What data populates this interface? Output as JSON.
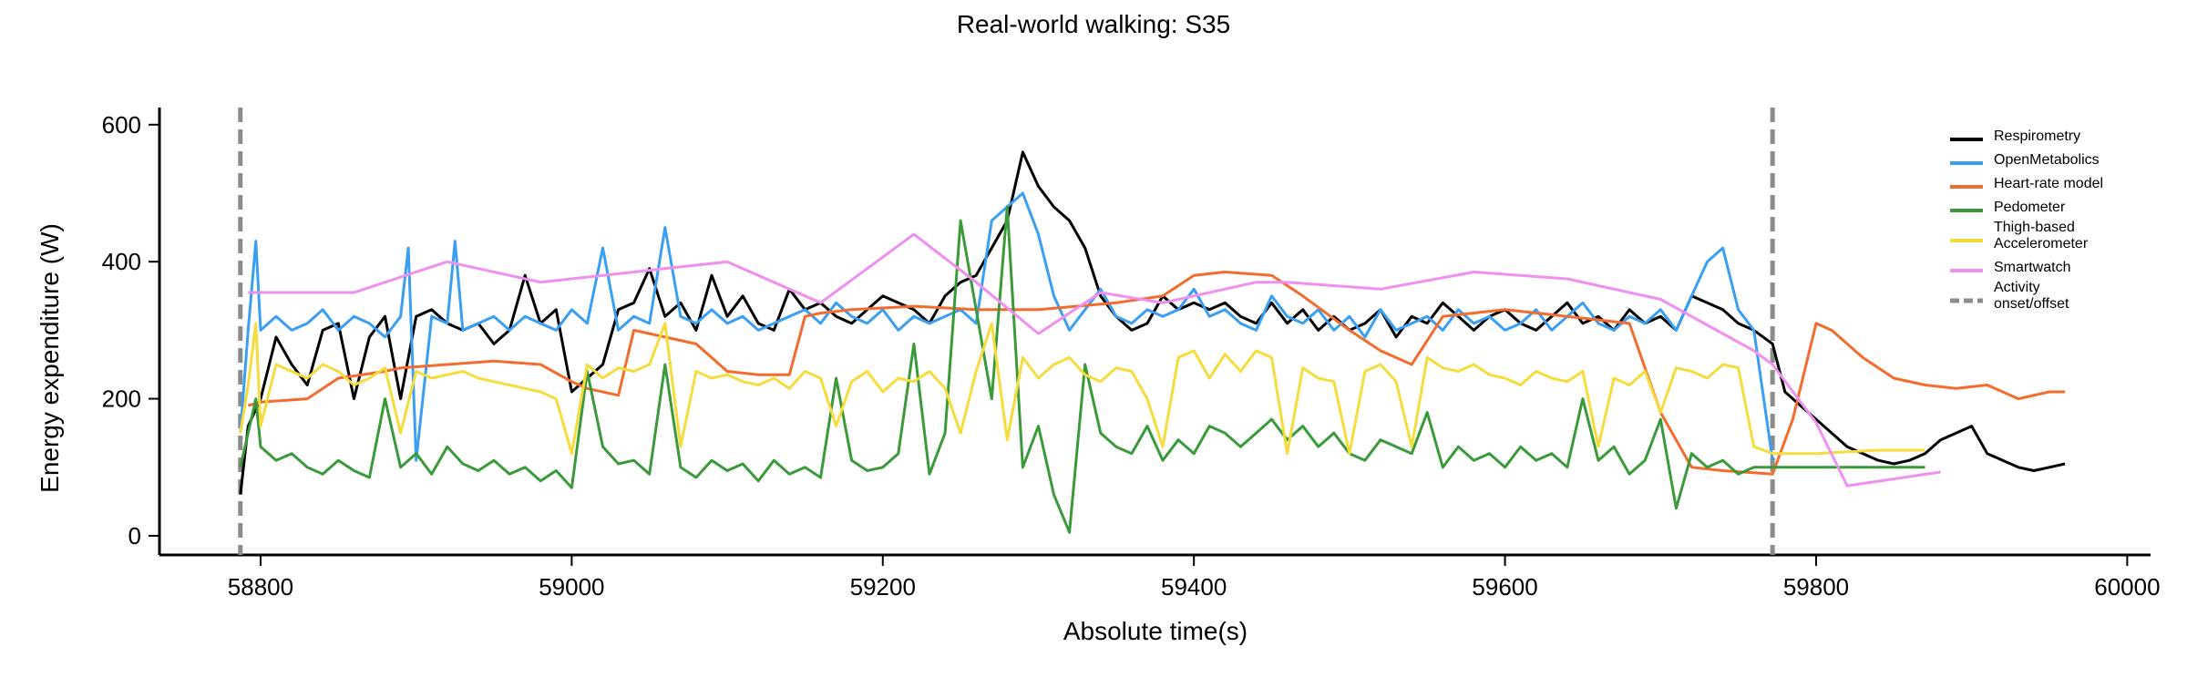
{
  "chart_data": {
    "type": "line",
    "title": "Real-world walking: S35",
    "xlabel": "Absolute time(s)",
    "ylabel": "Energy expenditure (W)",
    "xlim": [
      58735,
      60015
    ],
    "ylim": [
      -28,
      625
    ],
    "xticks": [
      58800,
      59000,
      59200,
      59400,
      59600,
      59800,
      60000
    ],
    "yticks": [
      0,
      200,
      400,
      600
    ],
    "grid": false,
    "legend_position": "top-right",
    "vlines": {
      "name": "Activity\nonset/offset",
      "x": [
        58787,
        59772
      ],
      "color": "#8c8c8c",
      "style": "dashed"
    },
    "series": [
      {
        "name": "Respirometry",
        "color": "#000000",
        "x": [
          58787,
          58792,
          58800,
          58810,
          58820,
          58830,
          58840,
          58850,
          58860,
          58870,
          58880,
          58890,
          58900,
          58910,
          58920,
          58930,
          58940,
          58950,
          58960,
          58970,
          58980,
          58990,
          59000,
          59010,
          59020,
          59030,
          59040,
          59050,
          59060,
          59070,
          59080,
          59090,
          59100,
          59110,
          59120,
          59130,
          59140,
          59150,
          59160,
          59170,
          59180,
          59190,
          59200,
          59210,
          59220,
          59230,
          59240,
          59250,
          59260,
          59270,
          59280,
          59290,
          59300,
          59310,
          59320,
          59330,
          59340,
          59350,
          59360,
          59370,
          59380,
          59390,
          59400,
          59410,
          59420,
          59430,
          59440,
          59450,
          59460,
          59470,
          59480,
          59490,
          59500,
          59510,
          59520,
          59530,
          59540,
          59550,
          59560,
          59570,
          59580,
          59590,
          59600,
          59610,
          59620,
          59630,
          59640,
          59650,
          59660,
          59670,
          59680,
          59690,
          59700,
          59710,
          59720,
          59730,
          59740,
          59750,
          59760,
          59772,
          59780,
          59790,
          59800,
          59810,
          59820,
          59830,
          59840,
          59850,
          59860,
          59870,
          59880,
          59890,
          59900,
          59910,
          59920,
          59930,
          59940,
          59950,
          59960
        ],
        "y": [
          60,
          160,
          200,
          290,
          250,
          220,
          300,
          310,
          200,
          290,
          320,
          200,
          320,
          330,
          310,
          300,
          310,
          280,
          300,
          380,
          310,
          330,
          210,
          230,
          250,
          330,
          340,
          390,
          320,
          340,
          300,
          380,
          320,
          350,
          310,
          300,
          360,
          330,
          340,
          320,
          310,
          330,
          350,
          340,
          330,
          310,
          350,
          370,
          380,
          420,
          460,
          560,
          510,
          480,
          460,
          420,
          350,
          320,
          300,
          310,
          350,
          330,
          340,
          330,
          340,
          320,
          310,
          340,
          310,
          330,
          300,
          320,
          300,
          310,
          330,
          290,
          320,
          310,
          340,
          320,
          300,
          320,
          330,
          310,
          300,
          320,
          340,
          310,
          320,
          300,
          330,
          310,
          320,
          300,
          350,
          340,
          330,
          310,
          300,
          280,
          210,
          190,
          170,
          150,
          130,
          120,
          110,
          105,
          110,
          120,
          140,
          150,
          160,
          120,
          110,
          100,
          95,
          100,
          105
        ]
      },
      {
        "name": "OpenMetabolics",
        "color": "#3a9ff2",
        "x": [
          58787,
          58792,
          58797,
          58800,
          58810,
          58820,
          58830,
          58840,
          58850,
          58860,
          58870,
          58880,
          58890,
          58895,
          58900,
          58910,
          58920,
          58925,
          58930,
          58940,
          58950,
          58960,
          58970,
          58980,
          58990,
          59000,
          59010,
          59020,
          59030,
          59040,
          59050,
          59060,
          59070,
          59080,
          59090,
          59100,
          59110,
          59120,
          59130,
          59140,
          59150,
          59160,
          59170,
          59180,
          59190,
          59200,
          59210,
          59220,
          59230,
          59240,
          59250,
          59260,
          59270,
          59280,
          59290,
          59300,
          59310,
          59320,
          59330,
          59340,
          59350,
          59360,
          59370,
          59380,
          59390,
          59400,
          59410,
          59420,
          59430,
          59440,
          59450,
          59460,
          59470,
          59480,
          59490,
          59500,
          59510,
          59520,
          59530,
          59540,
          59550,
          59560,
          59570,
          59580,
          59590,
          59600,
          59610,
          59620,
          59630,
          59640,
          59650,
          59660,
          59670,
          59680,
          59690,
          59700,
          59710,
          59720,
          59730,
          59740,
          59750,
          59760,
          59772
        ],
        "y": [
          150,
          300,
          430,
          300,
          320,
          300,
          310,
          330,
          300,
          320,
          310,
          290,
          320,
          420,
          110,
          320,
          310,
          430,
          300,
          310,
          320,
          300,
          320,
          310,
          300,
          330,
          310,
          420,
          300,
          320,
          310,
          450,
          320,
          310,
          330,
          310,
          320,
          300,
          310,
          320,
          330,
          310,
          340,
          320,
          310,
          330,
          300,
          320,
          310,
          320,
          330,
          310,
          460,
          480,
          500,
          440,
          350,
          300,
          330,
          360,
          320,
          310,
          330,
          320,
          330,
          360,
          320,
          330,
          310,
          300,
          350,
          320,
          310,
          330,
          300,
          320,
          290,
          330,
          300,
          310,
          320,
          300,
          330,
          310,
          320,
          300,
          310,
          330,
          300,
          320,
          340,
          310,
          300,
          320,
          310,
          330,
          300,
          350,
          400,
          420,
          330,
          300,
          110
        ]
      },
      {
        "name": "Heart-rate model",
        "color": "#f26c2d",
        "x": [
          58792,
          58800,
          58830,
          58850,
          58880,
          58890,
          58920,
          58950,
          58980,
          59000,
          59010,
          59030,
          59040,
          59060,
          59080,
          59100,
          59120,
          59140,
          59150,
          59160,
          59180,
          59220,
          59260,
          59300,
          59350,
          59380,
          59400,
          59420,
          59450,
          59470,
          59500,
          59520,
          59540,
          59560,
          59600,
          59640,
          59680,
          59700,
          59720,
          59740,
          59760,
          59772,
          59785,
          59800,
          59810,
          59830,
          59850,
          59870,
          59890,
          59910,
          59930,
          59950,
          59960
        ],
        "y": [
          190,
          195,
          200,
          230,
          240,
          245,
          250,
          255,
          250,
          225,
          215,
          205,
          300,
          290,
          280,
          240,
          235,
          235,
          320,
          325,
          330,
          335,
          330,
          330,
          340,
          350,
          380,
          385,
          380,
          350,
          300,
          270,
          250,
          320,
          330,
          320,
          310,
          180,
          100,
          95,
          92,
          90,
          170,
          310,
          300,
          260,
          230,
          220,
          215,
          220,
          200,
          210,
          210
        ]
      },
      {
        "name": "Pedometer",
        "color": "#3a9a3a",
        "x": [
          58787,
          58792,
          58797,
          58800,
          58810,
          58820,
          58830,
          58840,
          58850,
          58860,
          58870,
          58880,
          58890,
          58900,
          58910,
          58920,
          58930,
          58940,
          58950,
          58960,
          58970,
          58980,
          58990,
          59000,
          59010,
          59020,
          59030,
          59040,
          59050,
          59060,
          59070,
          59080,
          59090,
          59100,
          59110,
          59120,
          59130,
          59140,
          59150,
          59160,
          59170,
          59180,
          59190,
          59200,
          59210,
          59220,
          59230,
          59240,
          59250,
          59260,
          59270,
          59280,
          59290,
          59300,
          59310,
          59320,
          59330,
          59340,
          59350,
          59360,
          59370,
          59380,
          59390,
          59400,
          59410,
          59420,
          59430,
          59440,
          59450,
          59460,
          59470,
          59480,
          59490,
          59500,
          59510,
          59520,
          59530,
          59540,
          59550,
          59560,
          59570,
          59580,
          59590,
          59600,
          59610,
          59620,
          59630,
          59640,
          59650,
          59660,
          59670,
          59680,
          59690,
          59700,
          59710,
          59720,
          59730,
          59740,
          59750,
          59760,
          59772,
          59800,
          59840,
          59870
        ],
        "y": [
          100,
          150,
          200,
          130,
          110,
          120,
          100,
          90,
          110,
          95,
          85,
          200,
          100,
          120,
          90,
          130,
          105,
          95,
          110,
          90,
          100,
          80,
          95,
          70,
          240,
          130,
          105,
          110,
          90,
          250,
          100,
          85,
          110,
          95,
          105,
          80,
          110,
          90,
          100,
          85,
          230,
          110,
          95,
          100,
          120,
          280,
          90,
          150,
          460,
          330,
          200,
          480,
          100,
          160,
          60,
          5,
          250,
          150,
          130,
          120,
          160,
          110,
          140,
          120,
          160,
          150,
          130,
          150,
          170,
          140,
          160,
          130,
          150,
          120,
          110,
          140,
          130,
          120,
          180,
          100,
          130,
          110,
          120,
          100,
          130,
          110,
          120,
          100,
          200,
          110,
          130,
          90,
          110,
          170,
          40,
          120,
          100,
          110,
          90,
          100,
          100,
          100,
          100,
          100
        ]
      },
      {
        "name": "Thigh-based\nAccelerometer",
        "color": "#f5dc3c",
        "x": [
          58787,
          58792,
          58797,
          58800,
          58810,
          58820,
          58830,
          58840,
          58850,
          58860,
          58870,
          58880,
          58890,
          58900,
          58910,
          58920,
          58930,
          58940,
          58950,
          58960,
          58970,
          58980,
          58990,
          59000,
          59010,
          59020,
          59030,
          59040,
          59050,
          59060,
          59070,
          59080,
          59090,
          59100,
          59110,
          59120,
          59130,
          59140,
          59150,
          59160,
          59170,
          59180,
          59190,
          59200,
          59210,
          59220,
          59230,
          59240,
          59250,
          59260,
          59270,
          59280,
          59290,
          59300,
          59310,
          59320,
          59330,
          59340,
          59350,
          59360,
          59370,
          59380,
          59390,
          59400,
          59410,
          59420,
          59430,
          59440,
          59450,
          59460,
          59470,
          59480,
          59490,
          59500,
          59510,
          59520,
          59530,
          59540,
          59550,
          59560,
          59570,
          59580,
          59590,
          59600,
          59610,
          59620,
          59630,
          59640,
          59650,
          59660,
          59670,
          59680,
          59690,
          59700,
          59710,
          59720,
          59730,
          59740,
          59750,
          59760,
          59772,
          59800,
          59840,
          59870
        ],
        "y": [
          150,
          220,
          310,
          160,
          250,
          240,
          230,
          250,
          240,
          220,
          230,
          245,
          150,
          240,
          230,
          235,
          240,
          230,
          225,
          220,
          215,
          210,
          200,
          120,
          250,
          230,
          245,
          240,
          250,
          310,
          130,
          240,
          230,
          235,
          225,
          220,
          230,
          215,
          240,
          230,
          160,
          225,
          240,
          210,
          230,
          225,
          240,
          215,
          150,
          240,
          310,
          140,
          260,
          230,
          250,
          260,
          235,
          225,
          245,
          240,
          200,
          130,
          260,
          270,
          230,
          265,
          240,
          270,
          260,
          120,
          245,
          230,
          225,
          120,
          240,
          250,
          225,
          130,
          260,
          245,
          240,
          250,
          235,
          230,
          220,
          240,
          230,
          225,
          240,
          130,
          230,
          220,
          240,
          180,
          245,
          240,
          230,
          250,
          245,
          130,
          120,
          120,
          125,
          125
        ]
      },
      {
        "name": "Smartwatch",
        "color": "#ef8fef",
        "x": [
          58792,
          58860,
          58920,
          58980,
          59040,
          59100,
          59160,
          59220,
          59260,
          59300,
          59340,
          59380,
          59440,
          59460,
          59520,
          59580,
          59640,
          59700,
          59760,
          59772,
          59800,
          59820,
          59880
        ],
        "y": [
          355,
          355,
          400,
          370,
          385,
          400,
          340,
          440,
          370,
          295,
          355,
          340,
          370,
          370,
          360,
          385,
          375,
          345,
          270,
          250,
          165,
          73,
          93
        ]
      }
    ]
  }
}
